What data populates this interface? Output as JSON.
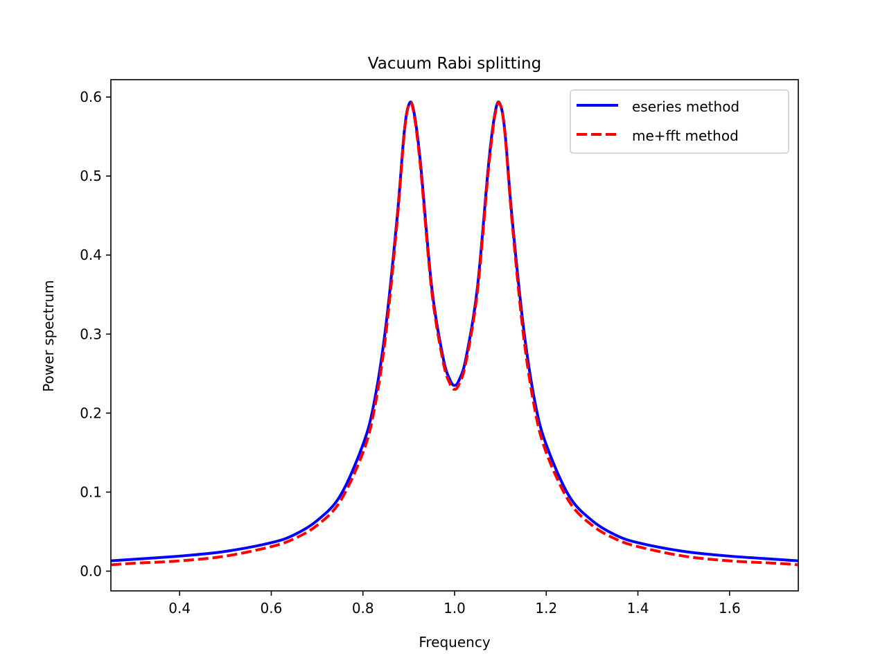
{
  "chart_data": {
    "type": "line",
    "title": "Vacuum Rabi splitting",
    "xlabel": "Frequency",
    "ylabel": "Power spectrum",
    "xlim": [
      0.25,
      1.75
    ],
    "ylim": [
      -0.025,
      0.622
    ],
    "grid": false,
    "legend_placement": "top-right",
    "xticks": [
      0.4,
      0.6,
      0.8,
      1.0,
      1.2,
      1.4,
      1.6
    ],
    "xtick_labels": [
      "0.4",
      "0.6",
      "0.8",
      "1.0",
      "1.2",
      "1.4",
      "1.6"
    ],
    "yticks": [
      0.0,
      0.1,
      0.2,
      0.3,
      0.4,
      0.5,
      0.6
    ],
    "ytick_labels": [
      "0.0",
      "0.1",
      "0.2",
      "0.3",
      "0.4",
      "0.5",
      "0.6"
    ],
    "series": [
      {
        "name": "eseries method",
        "color": "#0000ff",
        "style": "solid",
        "x": [
          0.25,
          0.3,
          0.4,
          0.5,
          0.6,
          0.65,
          0.7,
          0.75,
          0.8,
          0.825,
          0.85,
          0.875,
          0.89,
          0.9,
          0.91,
          0.925,
          0.95,
          0.975,
          0.99,
          1.0,
          1.01,
          1.025,
          1.05,
          1.075,
          1.09,
          1.1,
          1.11,
          1.125,
          1.15,
          1.175,
          1.2,
          1.25,
          1.3,
          1.35,
          1.4,
          1.5,
          1.6,
          1.7,
          1.75
        ],
        "y": [
          0.013,
          0.015,
          0.019,
          0.025,
          0.036,
          0.046,
          0.064,
          0.095,
          0.16,
          0.215,
          0.31,
          0.45,
          0.555,
          0.59,
          0.585,
          0.52,
          0.36,
          0.27,
          0.242,
          0.235,
          0.242,
          0.27,
          0.36,
          0.52,
          0.585,
          0.59,
          0.555,
          0.45,
          0.31,
          0.215,
          0.16,
          0.095,
          0.064,
          0.046,
          0.036,
          0.025,
          0.019,
          0.015,
          0.013
        ]
      },
      {
        "name": "me+fft method",
        "color": "#ff0000",
        "style": "dashed",
        "x": [
          0.25,
          0.3,
          0.4,
          0.5,
          0.6,
          0.65,
          0.7,
          0.75,
          0.8,
          0.825,
          0.85,
          0.875,
          0.89,
          0.9,
          0.91,
          0.925,
          0.95,
          0.975,
          0.99,
          1.0,
          1.01,
          1.025,
          1.05,
          1.075,
          1.09,
          1.1,
          1.11,
          1.125,
          1.15,
          1.175,
          1.2,
          1.25,
          1.3,
          1.35,
          1.4,
          1.5,
          1.6,
          1.7,
          1.75
        ],
        "y": [
          0.008,
          0.01,
          0.013,
          0.019,
          0.031,
          0.041,
          0.058,
          0.088,
          0.15,
          0.205,
          0.3,
          0.445,
          0.553,
          0.59,
          0.583,
          0.515,
          0.355,
          0.265,
          0.237,
          0.23,
          0.237,
          0.265,
          0.355,
          0.515,
          0.583,
          0.59,
          0.553,
          0.445,
          0.3,
          0.205,
          0.15,
          0.088,
          0.058,
          0.041,
          0.031,
          0.019,
          0.013,
          0.01,
          0.008
        ]
      }
    ]
  }
}
